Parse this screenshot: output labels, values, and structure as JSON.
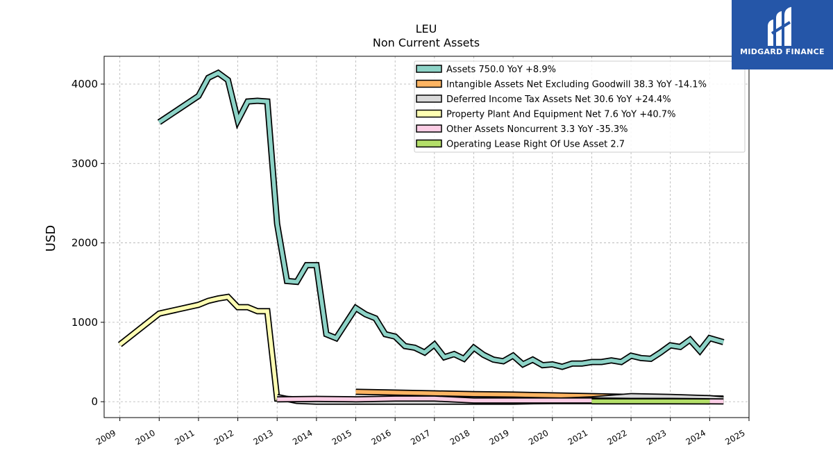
{
  "chart_data": {
    "type": "line",
    "title": "LEU",
    "subtitle": "Non Current  Assets",
    "ylabel": "USD",
    "xlabel": "",
    "xlim": [
      2008.6,
      2025.0
    ],
    "ylim": [
      -200,
      4350
    ],
    "y_ticks": [
      0,
      1000,
      2000,
      3000,
      4000
    ],
    "x_ticks": [
      "2009",
      "2010",
      "2011",
      "2012",
      "2013",
      "2014",
      "2015",
      "2016",
      "2017",
      "2018",
      "2019",
      "2020",
      "2021",
      "2022",
      "2023",
      "2024",
      "2025"
    ],
    "grid": true,
    "legend_position": "top-right",
    "series": [
      {
        "name": "Assets  750.0 YoY +8.9%",
        "color": "#8dd3c7",
        "points": [
          [
            2010.0,
            3520
          ],
          [
            2011.0,
            3850
          ],
          [
            2011.25,
            4080
          ],
          [
            2011.5,
            4140
          ],
          [
            2011.75,
            4050
          ],
          [
            2012.0,
            3540
          ],
          [
            2012.25,
            3780
          ],
          [
            2012.5,
            3790
          ],
          [
            2012.75,
            3780
          ],
          [
            2013.0,
            2240
          ],
          [
            2013.25,
            1520
          ],
          [
            2013.5,
            1510
          ],
          [
            2013.75,
            1720
          ],
          [
            2014.0,
            1720
          ],
          [
            2014.25,
            850
          ],
          [
            2014.5,
            800
          ],
          [
            2015.0,
            1180
          ],
          [
            2015.25,
            1100
          ],
          [
            2015.5,
            1050
          ],
          [
            2015.75,
            850
          ],
          [
            2016.0,
            820
          ],
          [
            2016.25,
            700
          ],
          [
            2016.5,
            680
          ],
          [
            2016.75,
            620
          ],
          [
            2017.0,
            720
          ],
          [
            2017.25,
            560
          ],
          [
            2017.5,
            600
          ],
          [
            2017.75,
            540
          ],
          [
            2018.0,
            680
          ],
          [
            2018.25,
            590
          ],
          [
            2018.5,
            530
          ],
          [
            2018.75,
            510
          ],
          [
            2019.0,
            580
          ],
          [
            2019.25,
            470
          ],
          [
            2019.5,
            530
          ],
          [
            2019.75,
            460
          ],
          [
            2020.0,
            470
          ],
          [
            2020.25,
            440
          ],
          [
            2020.5,
            480
          ],
          [
            2020.75,
            480
          ],
          [
            2021.0,
            500
          ],
          [
            2021.25,
            500
          ],
          [
            2021.5,
            520
          ],
          [
            2021.75,
            500
          ],
          [
            2022.0,
            580
          ],
          [
            2022.25,
            550
          ],
          [
            2022.5,
            540
          ],
          [
            2022.75,
            620
          ],
          [
            2023.0,
            710
          ],
          [
            2023.25,
            690
          ],
          [
            2023.5,
            780
          ],
          [
            2023.75,
            640
          ],
          [
            2024.0,
            800
          ],
          [
            2024.35,
            750
          ]
        ]
      },
      {
        "name": "Intangible Assets Net Excluding Goodwill  38.3 YoY -14.1%",
        "color": "#fdb462",
        "points": [
          [
            2015.0,
            125
          ],
          [
            2016.0,
            115
          ],
          [
            2017.0,
            105
          ],
          [
            2018.0,
            95
          ],
          [
            2019.0,
            90
          ],
          [
            2020.0,
            80
          ],
          [
            2021.0,
            70
          ],
          [
            2022.0,
            60
          ],
          [
            2023.0,
            50
          ],
          [
            2024.35,
            40
          ]
        ]
      },
      {
        "name": "Deferred Income Tax Assets Net  30.6 YoY +24.4%",
        "color": "#d9d9d9",
        "points": [
          [
            2013.0,
            60
          ],
          [
            2013.5,
            10
          ],
          [
            2014.0,
            0
          ],
          [
            2015.0,
            0
          ],
          [
            2016.0,
            0
          ],
          [
            2017.0,
            0
          ],
          [
            2018.0,
            0
          ],
          [
            2019.0,
            0
          ],
          [
            2020.0,
            10
          ],
          [
            2021.0,
            30
          ],
          [
            2022.0,
            70
          ],
          [
            2023.0,
            60
          ],
          [
            2024.0,
            45
          ],
          [
            2024.35,
            30
          ]
        ]
      },
      {
        "name": "Property Plant And Equipment Net  7.6 YoY +40.7%",
        "color": "#ffffb3",
        "points": [
          [
            2009.0,
            720
          ],
          [
            2010.0,
            1110
          ],
          [
            2011.0,
            1220
          ],
          [
            2011.25,
            1270
          ],
          [
            2011.5,
            1300
          ],
          [
            2011.75,
            1320
          ],
          [
            2012.0,
            1190
          ],
          [
            2012.25,
            1190
          ],
          [
            2012.5,
            1140
          ],
          [
            2012.75,
            1140
          ],
          [
            2013.0,
            40
          ],
          [
            2014.0,
            20
          ],
          [
            2015.0,
            15
          ],
          [
            2016.0,
            12
          ],
          [
            2017.0,
            10
          ],
          [
            2018.0,
            8
          ],
          [
            2019.0,
            8
          ],
          [
            2020.0,
            8
          ],
          [
            2021.0,
            8
          ],
          [
            2022.0,
            8
          ],
          [
            2023.0,
            8
          ],
          [
            2024.35,
            8
          ]
        ]
      },
      {
        "name": "Other Assets Noncurrent  3.3 YoY -35.3%",
        "color": "#fccde5",
        "points": [
          [
            2013.0,
            30
          ],
          [
            2014.0,
            35
          ],
          [
            2015.0,
            30
          ],
          [
            2016.0,
            40
          ],
          [
            2017.0,
            40
          ],
          [
            2018.0,
            15
          ],
          [
            2019.0,
            15
          ],
          [
            2020.0,
            15
          ],
          [
            2021.0,
            15
          ],
          [
            2022.0,
            10
          ],
          [
            2023.0,
            10
          ],
          [
            2024.0,
            5
          ],
          [
            2024.35,
            3
          ]
        ]
      },
      {
        "name": "Operating Lease Right Of Use Asset  2.7",
        "color": "#b3de69",
        "points": [
          [
            2021.0,
            5
          ],
          [
            2022.0,
            5
          ],
          [
            2023.0,
            5
          ],
          [
            2024.0,
            3
          ]
        ]
      }
    ]
  },
  "logo": {
    "text": "MIDGARD FINANCE",
    "color": "#2556a8"
  }
}
